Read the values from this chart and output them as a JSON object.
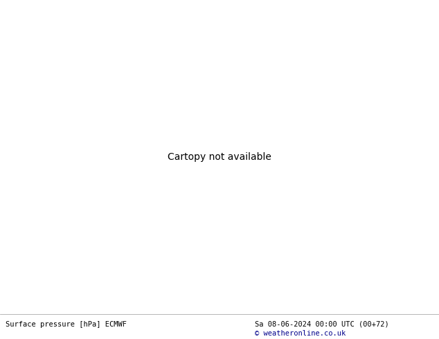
{
  "footer_left": "Surface pressure [hPa] ECMWF",
  "footer_center": "Sa 08-06-2024 00:00 UTC (00+72)",
  "footer_right": "© weatheronline.co.uk",
  "ocean_color": "#d8e8f0",
  "land_color": "#c8e6a0",
  "land_border_color": "#888888",
  "gray_land_color": "#b0b0b0",
  "contour_blue_color": "#0000ee",
  "contour_red_color": "#dd0000",
  "contour_black_color": "#000000",
  "footer_bg": "#ffffff",
  "fig_width": 6.34,
  "fig_height": 4.9,
  "dpi": 100,
  "lon_min": -175,
  "lon_max": -45,
  "lat_min": 12,
  "lat_max": 78
}
